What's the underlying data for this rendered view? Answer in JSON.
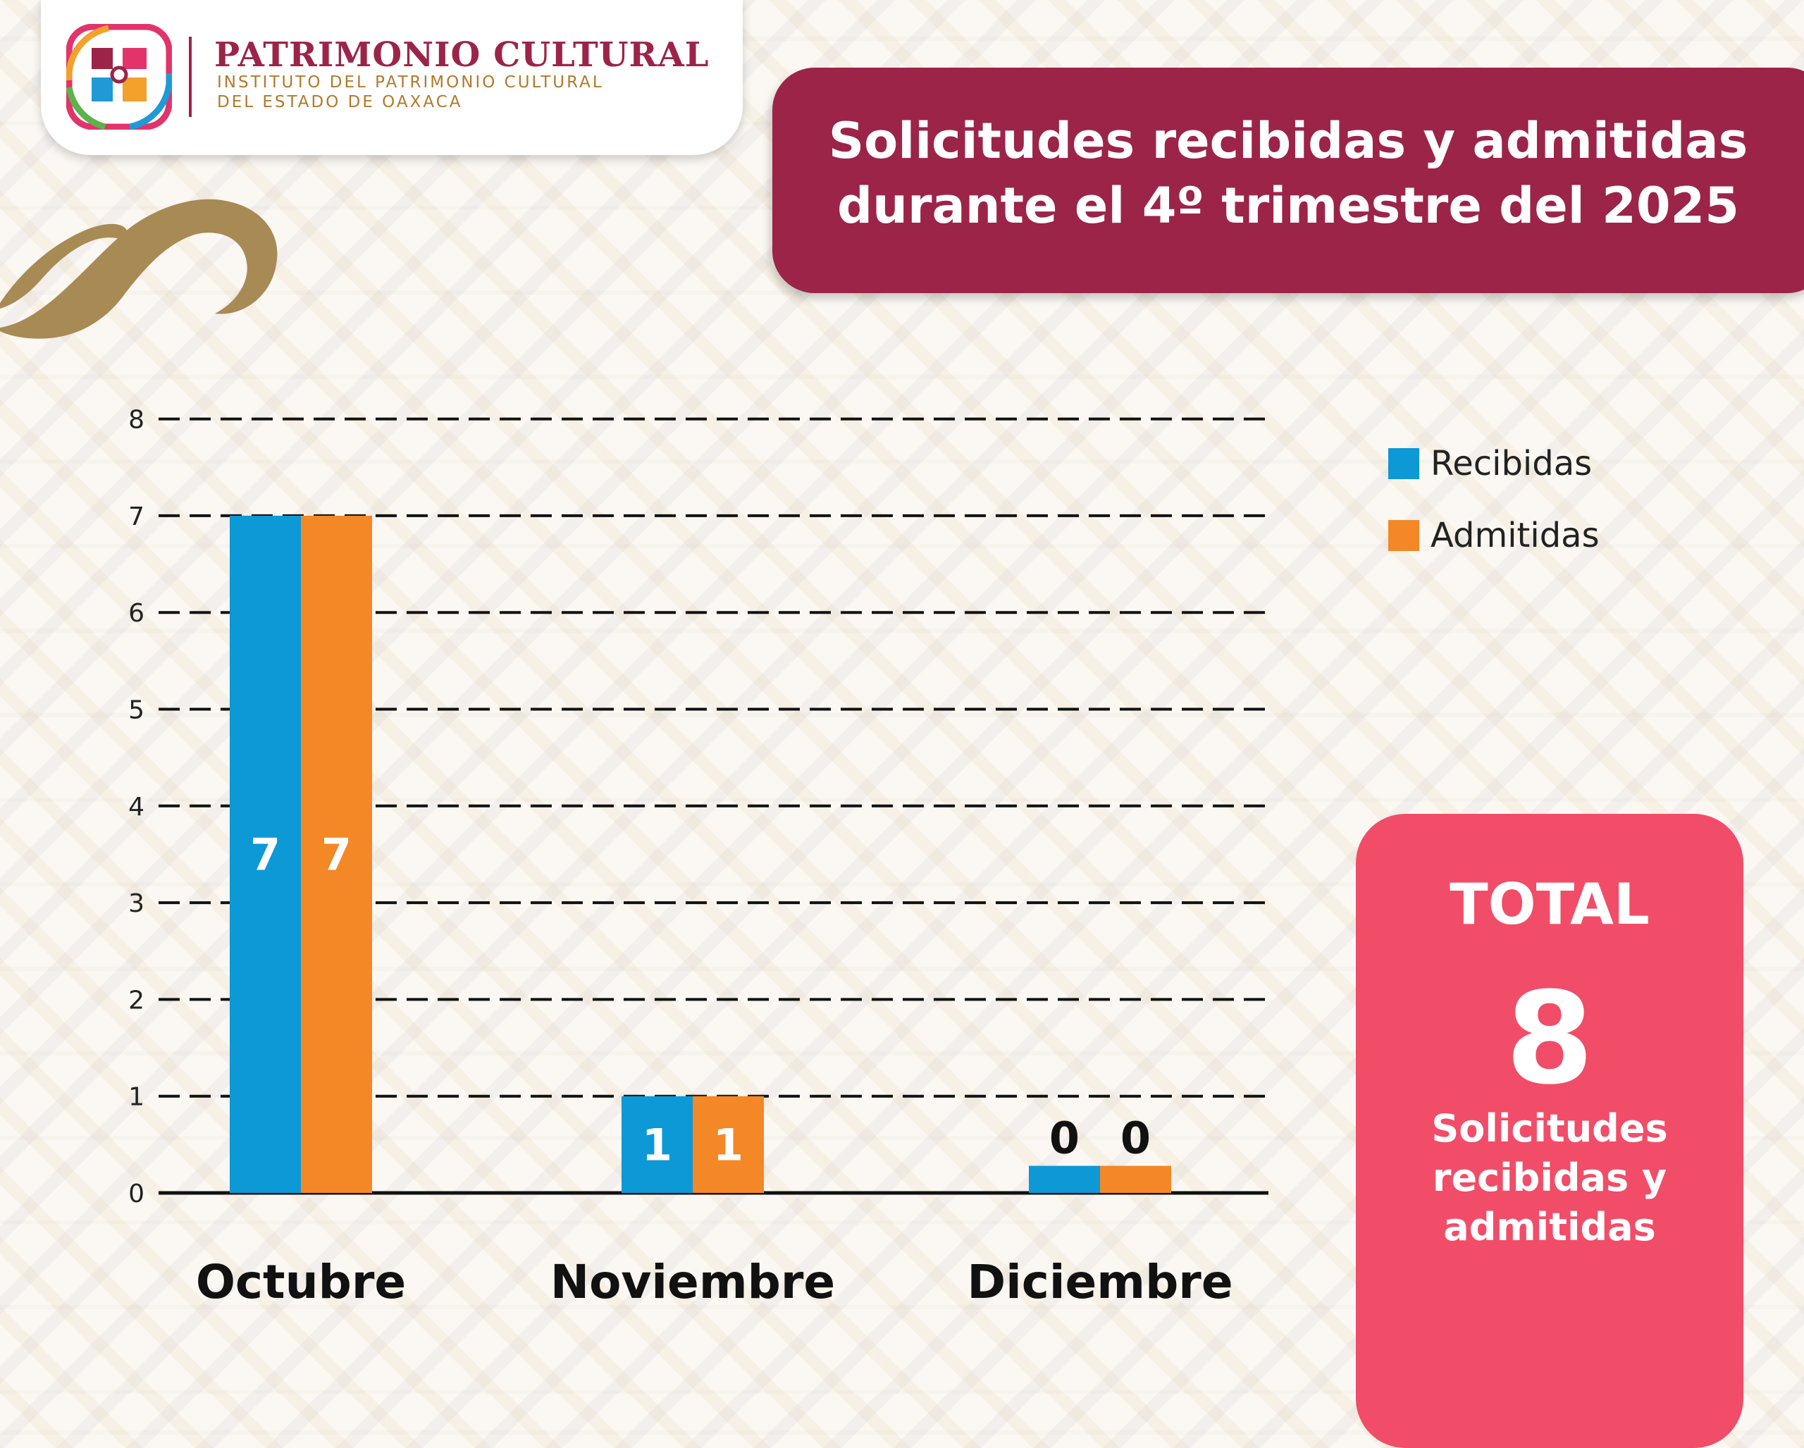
{
  "header": {
    "org_name": "PATRIMONIO CULTURAL",
    "org_subtitle_line1": "INSTITUTO DEL PATRIMONIO CULTURAL",
    "org_subtitle_line2": "DEL ESTADO DE OAXACA"
  },
  "title": {
    "line1": "Solicitudes recibidas y admitidas",
    "line2": "durante el 4º trimestre del 2025"
  },
  "chart_data": {
    "type": "bar",
    "title": "Solicitudes recibidas y admitidas durante el 4º trimestre del 2025",
    "categories": [
      "Octubre",
      "Noviembre",
      "Diciembre"
    ],
    "series": [
      {
        "name": "Recibidas",
        "values": [
          7,
          1,
          0
        ],
        "color": "#0d98d6"
      },
      {
        "name": "Admitidas",
        "values": [
          7,
          1,
          0
        ],
        "color": "#f48726"
      }
    ],
    "yticks": [
      0,
      1,
      2,
      3,
      4,
      5,
      6,
      7,
      8
    ],
    "ylim": [
      0,
      8
    ],
    "grid": "dashed horizontal",
    "legend": "right",
    "data_labels": true
  },
  "total": {
    "label": "TOTAL",
    "value": "8",
    "description_lines": [
      "Solicitudes",
      "recibidas y",
      "admitidas"
    ]
  },
  "colors": {
    "maroon": "#9c2449",
    "total_card": "#f14d68",
    "recibidas": "#0d98d6",
    "admitidas": "#f48726",
    "gold": "#a88a55"
  }
}
